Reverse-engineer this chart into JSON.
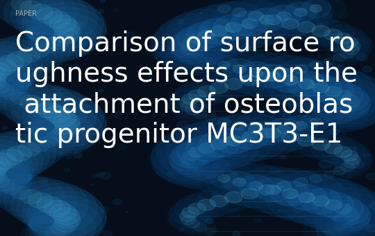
{
  "label_text": "PAPER",
  "label_color": "#aaaaaa",
  "label_fontsize": 7,
  "title_lines": [
    "Comparison of surface ro",
    "ughness effects upon the",
    " attachment of osteoblas",
    "tic progenitor MC3T3-E1"
  ],
  "title_color": "#ffffff",
  "title_fontsize": 28,
  "bg_color": "#050e1a",
  "fig_width": 5.4,
  "fig_height": 3.41,
  "dpi": 100,
  "helix_color_dark": "#0a3a6a",
  "helix_color_mid": "#1a6aaa",
  "helix_color_bright": "#4aaad0",
  "glow_color": "#1a5a9a"
}
